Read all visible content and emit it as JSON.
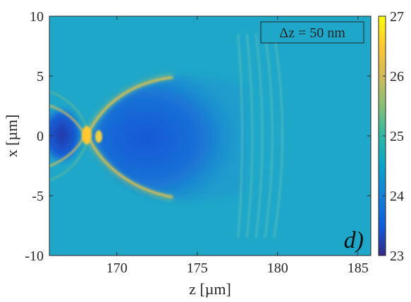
{
  "chart_data": {
    "type": "heatmap",
    "title": "",
    "xlabel": "z [µm]",
    "ylabel": "x [µm]",
    "xlim": [
      165.8,
      185.8
    ],
    "ylim": [
      -10,
      10
    ],
    "x_ticks": [
      170,
      175,
      180,
      185
    ],
    "y_ticks": [
      -10,
      -5,
      0,
      5,
      10
    ],
    "x_tick_labels": [
      "170",
      "175",
      "180",
      "185"
    ],
    "y_tick_labels": [
      "-10",
      "-5",
      "0",
      "5",
      "10"
    ],
    "colorbar": {
      "min": 23,
      "max": 27,
      "ticks": [
        23,
        24,
        25,
        26,
        27
      ],
      "tick_labels": [
        "23",
        "24",
        "25",
        "26",
        "27"
      ],
      "colormap": "parula",
      "colors": [
        "#352a87",
        "#0f5cdd",
        "#1481d6",
        "#06a4ca",
        "#2eb7a4",
        "#87bf77",
        "#d1bb59",
        "#fec832",
        "#f9fb0e"
      ]
    },
    "background_value": 25,
    "features": {
      "low_density_cavity": {
        "z_range": [
          168.5,
          177.5
        ],
        "x_range": [
          -5,
          5
        ],
        "value": 24
      },
      "shock_front": {
        "vertex_z": 168,
        "value": 26.5
      },
      "fringes": {
        "z_range": [
          177.8,
          180.3
        ],
        "count": 5,
        "value": 24.6
      }
    },
    "annotation": "Δz = 50 nm",
    "panel_label": "d)",
    "grid": false
  }
}
